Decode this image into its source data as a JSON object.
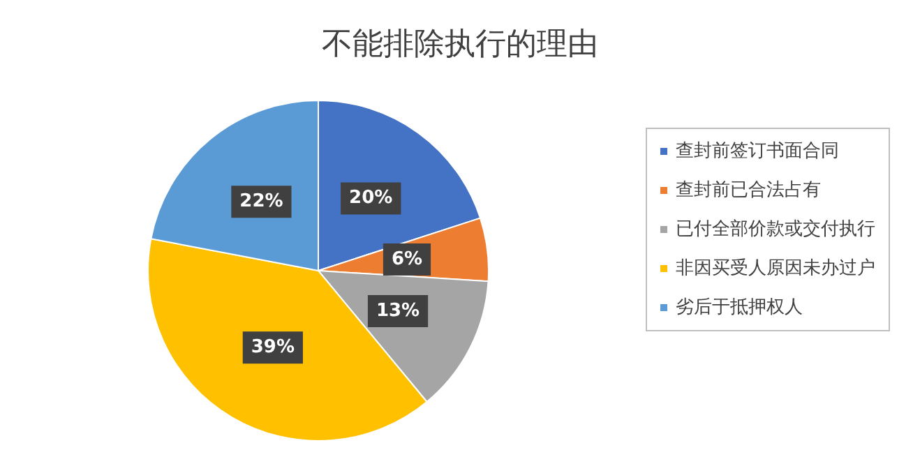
{
  "chart_data": {
    "type": "pie",
    "title": "不能排除执行的理由",
    "categories": [
      "查封前签订书面合同",
      "查封前已合法占有",
      "已付全部价款或交付执行",
      "非因买受人原因未办过户",
      "劣后于抵押权人"
    ],
    "values": [
      20,
      6,
      13,
      39,
      22
    ],
    "value_labels": [
      "20%",
      "6%",
      "13%",
      "39%",
      "22%"
    ],
    "colors": [
      "#4472c4",
      "#ed7d31",
      "#a5a5a5",
      "#ffc000",
      "#5b9bd5"
    ],
    "legend": "right"
  }
}
